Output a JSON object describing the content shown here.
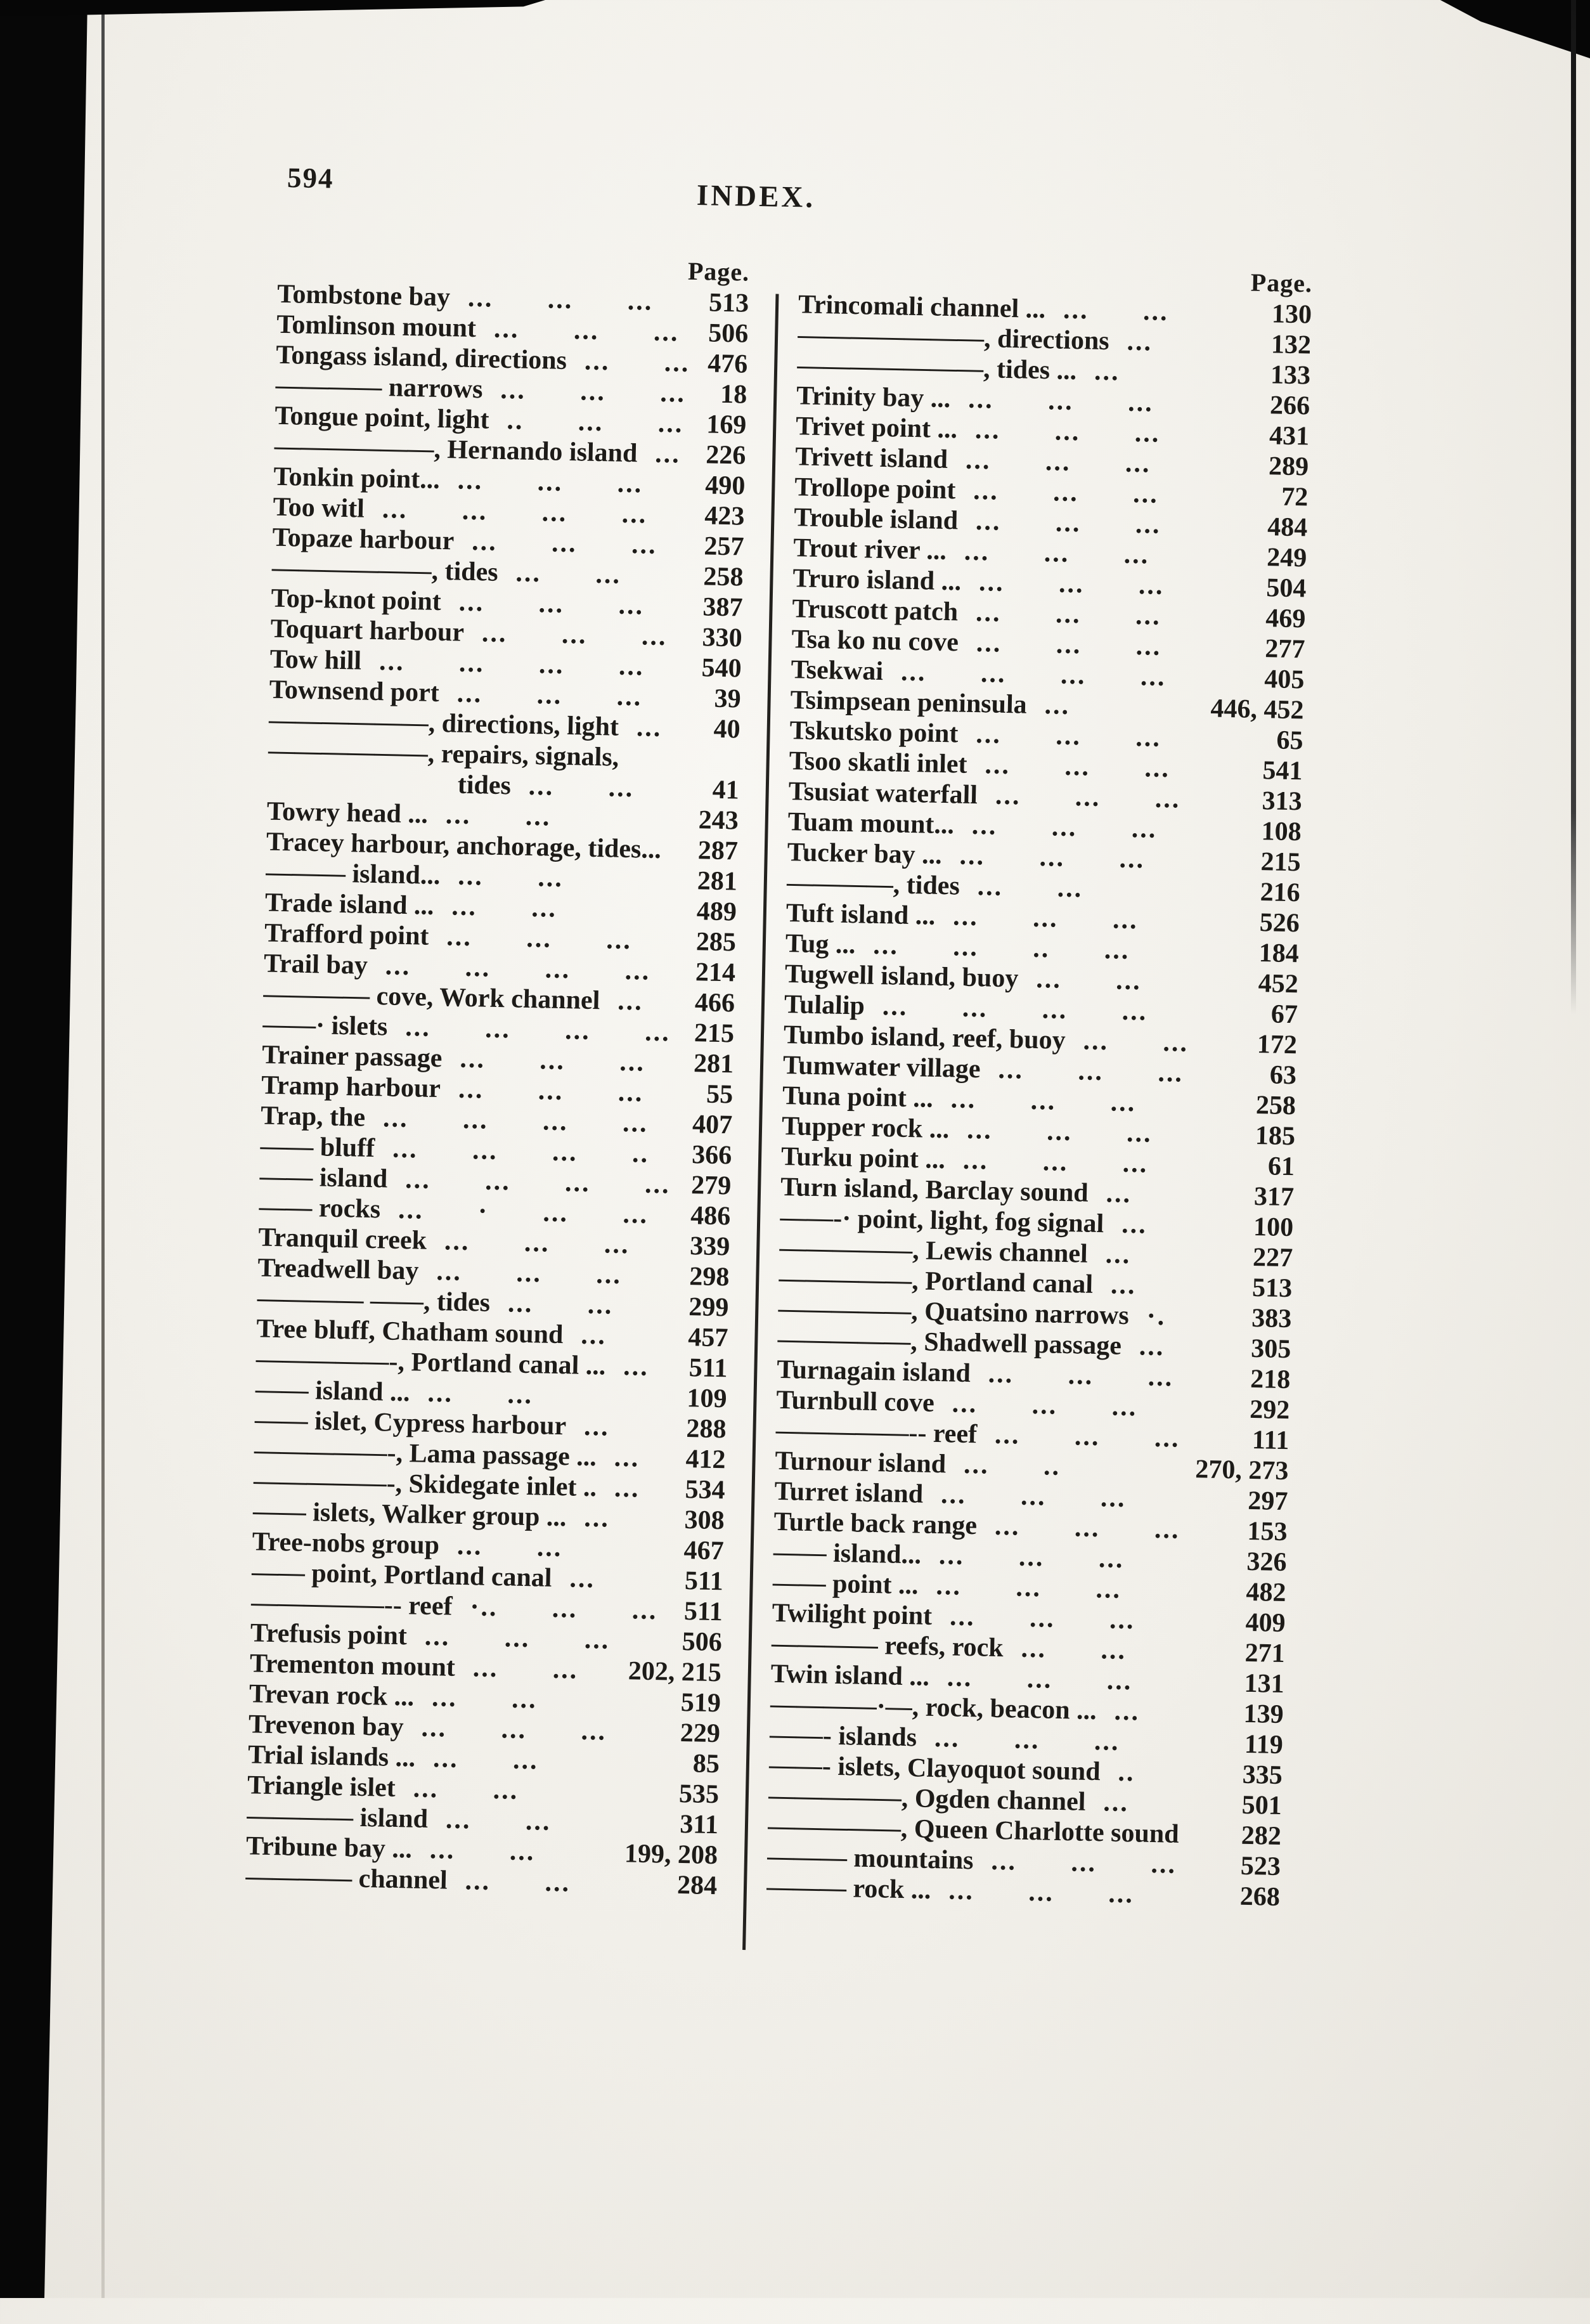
{
  "page": {
    "folio": "594",
    "title": "INDEX.",
    "col_header": "Page."
  },
  "left_column": {
    "entries": [
      {
        "label": "Tombstone bay",
        "dots": "... ... ...",
        "page": "513"
      },
      {
        "label": "Tomlinson mount",
        "dots": "... ... ...",
        "page": "506"
      },
      {
        "label": "Tongass island, directions",
        "dots": "... ...",
        "page": "476"
      },
      {
        "label": "———— narrows",
        "dots": "... ... ...",
        "page": "18"
      },
      {
        "label": "Tongue point, light",
        "dots": ".. ... ...",
        "page": "169"
      },
      {
        "label": "——————, Hernando island",
        "dots": "...",
        "page": "226"
      },
      {
        "label": "Tonkin point...",
        "dots": "... ... ...",
        "page": "490"
      },
      {
        "label": "Too witl",
        "dots": "... ... ... ...",
        "page": "423"
      },
      {
        "label": "Topaze harbour",
        "dots": "... ... ...",
        "page": "257"
      },
      {
        "label": "——————, tides",
        "dots": "... ...",
        "page": "258"
      },
      {
        "label": "Top-knot point",
        "dots": "... ... ...",
        "page": "387"
      },
      {
        "label": "Toquart harbour",
        "dots": "... ... ...",
        "page": "330"
      },
      {
        "label": "Tow hill",
        "dots": "... ... ... ...",
        "page": "540"
      },
      {
        "label": "Townsend port",
        "dots": "... ... ...",
        "page": "39"
      },
      {
        "label": "——————, directions, light",
        "dots": "...",
        "page": "40"
      },
      {
        "label": "——————, repairs, signals,",
        "dots": "",
        "page": ""
      },
      {
        "label": "tides",
        "dots": "... ...",
        "page": "41",
        "indent": true
      },
      {
        "label": "Towry head ...",
        "dots": "... ...",
        "page": "243"
      },
      {
        "label": "Tracey harbour, anchorage, tides...",
        "dots": "",
        "page": "287"
      },
      {
        "label": "——— island...",
        "dots": "... ...",
        "page": "281"
      },
      {
        "label": "Trade island ...",
        "dots": "... ...",
        "page": "489"
      },
      {
        "label": "Trafford point",
        "dots": "... ... ...",
        "page": "285"
      },
      {
        "label": "Trail bay",
        "dots": "... ... ... ...",
        "page": "214"
      },
      {
        "label": "———— cove, Work channel",
        "dots": "...",
        "page": "466"
      },
      {
        "label": "——· islets",
        "dots": "... ... ... ...",
        "page": "215"
      },
      {
        "label": "Trainer passage",
        "dots": "... ... ...",
        "page": "281"
      },
      {
        "label": "Tramp harbour",
        "dots": "... ... ...",
        "page": "55"
      },
      {
        "label": "Trap, the",
        "dots": "... ... ... ...",
        "page": "407"
      },
      {
        "label": "—— bluff",
        "dots": "... ... ... ..",
        "page": "366"
      },
      {
        "label": "—— island",
        "dots": "... ... ... ...",
        "page": "279"
      },
      {
        "label": "—— rocks",
        "dots": "... · ... ...",
        "page": "486"
      },
      {
        "label": "Tranquil creek",
        "dots": "... ... ...",
        "page": "339"
      },
      {
        "label": "Treadwell bay",
        "dots": "... ... ...",
        "page": "298"
      },
      {
        "label": "———— ——, tides",
        "dots": "... ...",
        "page": "299"
      },
      {
        "label": "Tree bluff, Chatham sound",
        "dots": "...",
        "page": "457"
      },
      {
        "label": "—————-, Portland canal ...",
        "dots": "...",
        "page": "511"
      },
      {
        "label": "—— island ...",
        "dots": "... ...",
        "page": "109"
      },
      {
        "label": "—— islet, Cypress harbour",
        "dots": "...",
        "page": "288"
      },
      {
        "label": "—————-, Lama passage ...",
        "dots": "...",
        "page": "412"
      },
      {
        "label": "—————-, Skidegate inlet ..",
        "dots": "...",
        "page": "534"
      },
      {
        "label": "—— islets, Walker group ...",
        "dots": "...",
        "page": "308"
      },
      {
        "label": "Tree-nobs group",
        "dots": "... ...",
        "page": "467"
      },
      {
        "label": "—— point, Portland canal",
        "dots": "...",
        "page": "511"
      },
      {
        "label": "—————-- reef",
        "dots": "·.. ... ...",
        "page": "511"
      },
      {
        "label": "Trefusis point",
        "dots": "... ... ...",
        "page": "506"
      },
      {
        "label": "Trementon mount",
        "dots": "... ...",
        "page": "202, 215"
      },
      {
        "label": "Trevan rock ...",
        "dots": "... ...",
        "page": "519"
      },
      {
        "label": "Trevenon bay",
        "dots": "... ... ...",
        "page": "229"
      },
      {
        "label": "Trial islands ...",
        "dots": "... ...",
        "page": "85"
      },
      {
        "label": "Triangle islet",
        "dots": "... ...",
        "page": "535"
      },
      {
        "label": "———— island",
        "dots": "... ...",
        "page": "311"
      },
      {
        "label": "Tribune bay ...",
        "dots": "... ...",
        "page": "199, 208"
      },
      {
        "label": "———— channel",
        "dots": "... ...",
        "page": "284"
      }
    ]
  },
  "right_column": {
    "entries": [
      {
        "label": "Trincomali channel ...",
        "dots": "... ...",
        "page": "130"
      },
      {
        "label": "———————, directions",
        "dots": "...",
        "page": "132"
      },
      {
        "label": "———————, tides ...",
        "dots": "...",
        "page": "133"
      },
      {
        "label": "Trinity bay ...",
        "dots": "... ... ...",
        "page": "266"
      },
      {
        "label": "Trivet point ...",
        "dots": "... ... ...",
        "page": "431"
      },
      {
        "label": "Trivett island",
        "dots": "... ... ...",
        "page": "289"
      },
      {
        "label": "Trollope point",
        "dots": "... ... ...",
        "page": "72"
      },
      {
        "label": "Trouble island",
        "dots": "... ... ...",
        "page": "484"
      },
      {
        "label": "Trout river ...",
        "dots": "... ... ...",
        "page": "249"
      },
      {
        "label": "Truro island ...",
        "dots": "... ... ...",
        "page": "504"
      },
      {
        "label": "Truscott patch",
        "dots": "... ... ...",
        "page": "469"
      },
      {
        "label": "Tsa ko nu cove",
        "dots": "... ... ...",
        "page": "277"
      },
      {
        "label": "Tsekwai",
        "dots": "... ... ... ...",
        "page": "405"
      },
      {
        "label": "Tsimpsean peninsula",
        "dots": "...",
        "page": "446, 452"
      },
      {
        "label": "Tskutsko point",
        "dots": "... ... ...",
        "page": "65"
      },
      {
        "label": "Tsoo skatli inlet",
        "dots": "... ... ...",
        "page": "541"
      },
      {
        "label": "Tsusiat waterfall",
        "dots": "... ... ...",
        "page": "313"
      },
      {
        "label": "Tuam mount...",
        "dots": "... ... ...",
        "page": "108"
      },
      {
        "label": "Tucker bay ...",
        "dots": "... ... ...",
        "page": "215"
      },
      {
        "label": "————, tides",
        "dots": "... ...",
        "page": "216"
      },
      {
        "label": "Tuft island ...",
        "dots": "... ... ...",
        "page": "526"
      },
      {
        "label": "Tug ...",
        "dots": "... ... .. ...",
        "page": "184"
      },
      {
        "label": "Tugwell island, buoy",
        "dots": "... ...",
        "page": "452"
      },
      {
        "label": "Tulalip",
        "dots": "... ... ... ...",
        "page": "67"
      },
      {
        "label": "Tumbo island, reef, buoy",
        "dots": "... ...",
        "page": "172"
      },
      {
        "label": "Tumwater village",
        "dots": "... ... ...",
        "page": "63"
      },
      {
        "label": "Tuna point ...",
        "dots": "... ... ...",
        "page": "258"
      },
      {
        "label": "Tupper rock ...",
        "dots": "... ... ...",
        "page": "185"
      },
      {
        "label": "Turku point ...",
        "dots": "... ... ...",
        "page": "61"
      },
      {
        "label": "Turn island, Barclay sound",
        "dots": "...",
        "page": "317"
      },
      {
        "label": "——-· point, light, fog signal",
        "dots": "...",
        "page": "100"
      },
      {
        "label": "—————, Lewis channel",
        "dots": "...",
        "page": "227"
      },
      {
        "label": "—————, Portland canal",
        "dots": "...",
        "page": "513"
      },
      {
        "label": "—————, Quatsino narrows",
        "dots": "·.",
        "page": "383"
      },
      {
        "label": "—————, Shadwell passage",
        "dots": "...",
        "page": "305"
      },
      {
        "label": "Turnagain island",
        "dots": "... ... ...",
        "page": "218"
      },
      {
        "label": "Turnbull cove",
        "dots": "... ... ...",
        "page": "292"
      },
      {
        "label": "—————-- reef",
        "dots": "... ... ...",
        "page": "111"
      },
      {
        "label": "Turnour island",
        "dots": "... ..",
        "page": "270, 273"
      },
      {
        "label": "Turret island",
        "dots": "... ... ...",
        "page": "297"
      },
      {
        "label": "Turtle back range",
        "dots": "... ... ...",
        "page": "153"
      },
      {
        "label": "—— island...",
        "dots": "... ... ...",
        "page": "326"
      },
      {
        "label": "—— point ...",
        "dots": "... ... ...",
        "page": "482"
      },
      {
        "label": "Twilight point",
        "dots": "... ... ...",
        "page": "409"
      },
      {
        "label": "———— reefs, rock",
        "dots": "... ...",
        "page": "271"
      },
      {
        "label": "Twin island ...",
        "dots": "... ... ...",
        "page": "131"
      },
      {
        "label": "————·—, rock, beacon ...",
        "dots": "...",
        "page": "139"
      },
      {
        "label": "——- islands",
        "dots": "... ... ...",
        "page": "119"
      },
      {
        "label": "——- islets, Clayoquot sound",
        "dots": "..",
        "page": "335"
      },
      {
        "label": "—————, Ogden channel",
        "dots": "...",
        "page": "501"
      },
      {
        "label": "—————, Queen Charlotte sound",
        "dots": "",
        "page": "282"
      },
      {
        "label": "——— mountains",
        "dots": "... ... ...",
        "page": "523"
      },
      {
        "label": "——— rock ...",
        "dots": "... ... ...",
        "page": "268"
      }
    ]
  }
}
